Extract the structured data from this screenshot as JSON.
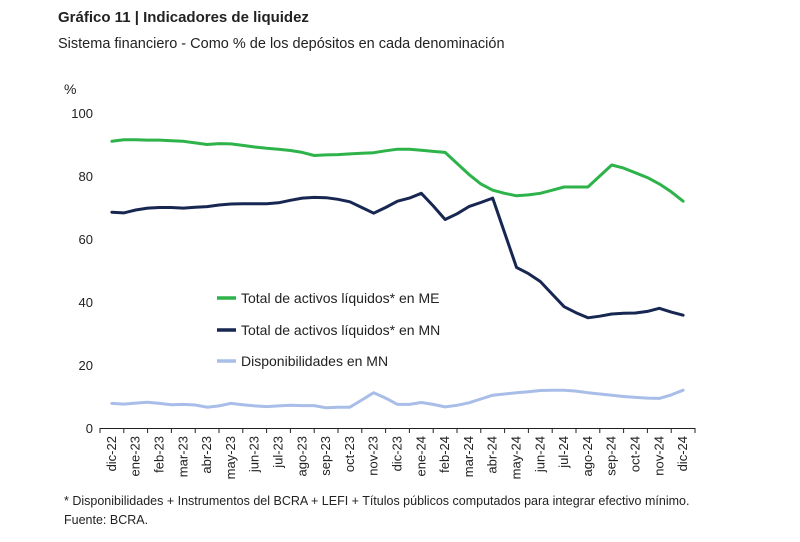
{
  "header": {
    "title": "Gráfico 11 | Indicadores de liquidez",
    "subtitle": "Sistema financiero - Como % de los depósitos en cada denominación"
  },
  "footnote": "* Disponibilidades + Instrumentos del BCRA + LEFI + Títulos públicos computados para integrar efectivo mínimo. Fuente: BCRA.",
  "chart_data": {
    "type": "line",
    "title": "Gráfico 11 | Indicadores de liquidez",
    "ylabel": "%",
    "xlabel": "",
    "ylim": [
      0,
      100
    ],
    "yticks": [
      0,
      20,
      40,
      60,
      80,
      100
    ],
    "categories": [
      "dic-22",
      "ene-23",
      "feb-23",
      "mar-23",
      "abr-23",
      "may-23",
      "jun-23",
      "jul-23",
      "ago-23",
      "sep-23",
      "oct-23",
      "nov-23",
      "dic-23",
      "ene-24",
      "feb-24",
      "mar-24",
      "abr-24",
      "may-24",
      "jun-24",
      "jul-24",
      "ago-24",
      "sep-24",
      "oct-24",
      "nov-24",
      "dic-24"
    ],
    "x": [
      0,
      0.5,
      1,
      1.5,
      2,
      2.5,
      3,
      3.5,
      4,
      4.5,
      5,
      5.5,
      6,
      6.5,
      7,
      7.5,
      8,
      8.5,
      9,
      9.5,
      10,
      10.5,
      11,
      11.5,
      12,
      12.5,
      13,
      13.5,
      14,
      14.5,
      15,
      15.5,
      16,
      16.5,
      17,
      17.5,
      18,
      18.5,
      19,
      19.5,
      20,
      20.5,
      21,
      21.5,
      22,
      22.5,
      23,
      23.5,
      24
    ],
    "legend_position": "center-left",
    "series": [
      {
        "name": "Total de activos líquidos* en ME",
        "color": "#2db34a",
        "values": [
          91,
          91.5,
          91.5,
          91.4,
          91.4,
          91.2,
          91,
          90.5,
          90,
          90.3,
          90.2,
          89.7,
          89.2,
          88.8,
          88.5,
          88.1,
          87.5,
          86.5,
          86.7,
          86.8,
          87,
          87.2,
          87.4,
          88,
          88.5,
          88.5,
          88.2,
          87.8,
          87.5,
          84,
          80.5,
          77.5,
          75.5,
          74.5,
          73.7,
          74,
          74.5,
          75.5,
          76.5,
          76.5,
          76.5,
          80,
          83.5,
          82.5,
          81,
          79.5,
          77.5,
          75,
          72
        ]
      },
      {
        "name": "Total de activos líquidos* en MN",
        "color": "#172752",
        "values": [
          68.5,
          68.3,
          69.2,
          69.8,
          70,
          70,
          69.8,
          70.1,
          70.3,
          70.8,
          71.1,
          71.2,
          71.2,
          71.2,
          71.5,
          72.3,
          73,
          73.2,
          73.1,
          72.6,
          71.8,
          70,
          68.2,
          70,
          72,
          73,
          74.5,
          70.5,
          66.2,
          68,
          70.3,
          71.6,
          73,
          62,
          51,
          49,
          46.5,
          42.5,
          38.5,
          36.6,
          35,
          35.5,
          36.2,
          36.4,
          36.5,
          37,
          38,
          36.8,
          35.8
        ]
      },
      {
        "name": "Disponibilidades en MN",
        "color": "#a8bde8",
        "values": [
          7.8,
          7.6,
          7.9,
          8.2,
          7.8,
          7.4,
          7.5,
          7.3,
          6.6,
          7,
          7.8,
          7.4,
          7,
          6.8,
          7,
          7.2,
          7.1,
          7.1,
          6.4,
          6.6,
          6.6,
          8.9,
          11.2,
          9.5,
          7.5,
          7.5,
          8.1,
          7.5,
          6.7,
          7.2,
          8,
          9.2,
          10.4,
          10.8,
          11.2,
          11.5,
          11.9,
          12,
          12,
          11.7,
          11.2,
          10.8,
          10.4,
          10,
          9.7,
          9.5,
          9.4,
          10.5,
          12
        ]
      }
    ]
  }
}
